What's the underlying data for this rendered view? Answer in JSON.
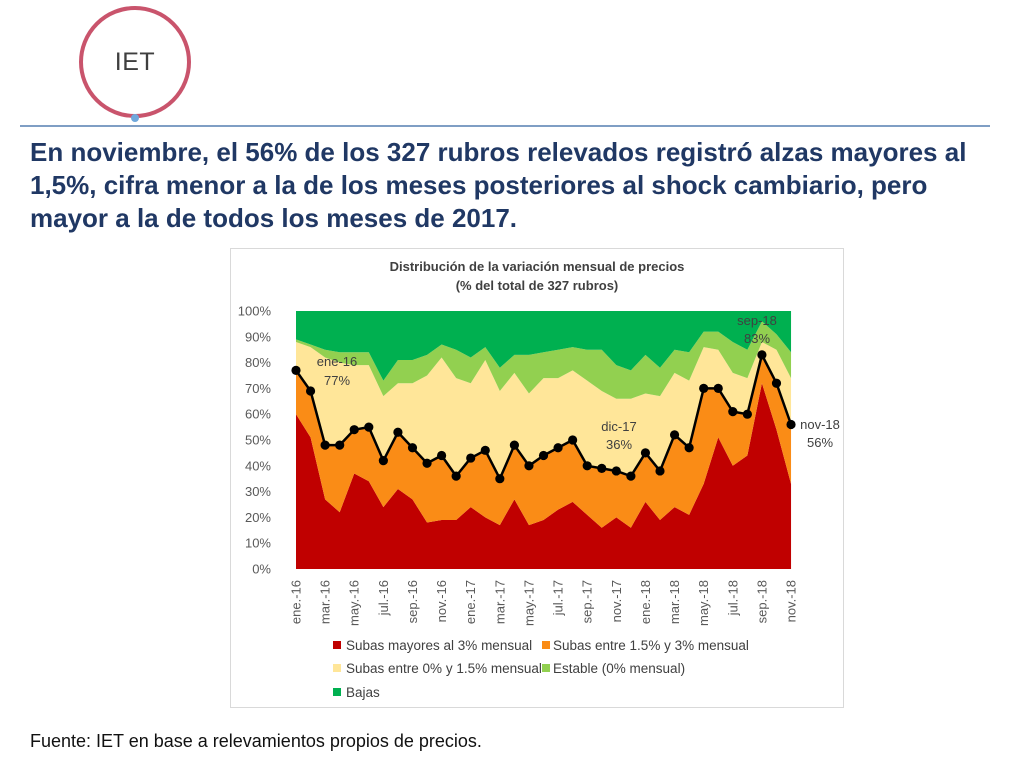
{
  "logo": {
    "text": "IET",
    "ring_color": "#C9546C",
    "dot_color": "#6FA8DC"
  },
  "rule_color": "#7F9EC4",
  "headline": {
    "color": "#203864",
    "lines": [
      "En noviembre, el 56% de los 327 rubros relevados registró alzas mayores al",
      "1,5%, cifra menor a la de los meses posteriores al shock cambiario, pero",
      "mayor a la de todos los meses de 2017."
    ]
  },
  "chart_data": {
    "type": "area",
    "stacked": true,
    "grid": false,
    "legend_position": "bottom",
    "title": "Distribución de la variación mensual de precios",
    "subtitle": "(% del total de 327 rubros)",
    "ylim": [
      0,
      100
    ],
    "y_ticks": [
      "0%",
      "10%",
      "20%",
      "30%",
      "40%",
      "50%",
      "60%",
      "70%",
      "80%",
      "90%",
      "100%"
    ],
    "categories": [
      "ene.-16",
      "",
      "mar.-16",
      "",
      "may.-16",
      "",
      "jul.-16",
      "",
      "sep.-16",
      "",
      "nov.-16",
      "",
      "ene.-17",
      "",
      "mar.-17",
      "",
      "may.-17",
      "",
      "jul.-17",
      "",
      "sep.-17",
      "",
      "nov.-17",
      "",
      "ene.-18",
      "",
      "mar.-18",
      "",
      "may.-18",
      "",
      "jul.-18",
      "",
      "sep.-18",
      "",
      "nov.-18"
    ],
    "series": [
      {
        "name": "Subas mayores al 3% mensual",
        "color": "#C00000",
        "values": [
          60,
          51,
          27,
          22,
          37,
          34,
          24,
          31,
          27,
          18,
          19,
          19,
          24,
          20,
          17,
          27,
          17,
          19,
          23,
          26,
          21,
          16,
          20,
          16,
          26,
          19,
          24,
          21,
          33,
          51,
          40,
          44,
          72,
          54,
          33
        ]
      },
      {
        "name": "Subas entre 1.5% y 3% mensual",
        "color": "#FA8C16",
        "values": [
          17,
          18,
          21,
          26,
          17,
          21,
          18,
          22,
          20,
          23,
          25,
          17,
          19,
          26,
          18,
          21,
          23,
          25,
          24,
          24,
          19,
          23,
          18,
          20,
          19,
          19,
          28,
          26,
          37,
          19,
          21,
          16,
          11,
          18,
          23
        ]
      },
      {
        "name": "Subas entre 0% y 1.5% mensual",
        "color": "#FFE699",
        "values": [
          11,
          17,
          34,
          32,
          25,
          24,
          25,
          19,
          25,
          34,
          38,
          38,
          29,
          35,
          34,
          28,
          28,
          30,
          27,
          27,
          33,
          30,
          28,
          30,
          23,
          29,
          24,
          26,
          16,
          15,
          15,
          14,
          5,
          13,
          18
        ]
      },
      {
        "name": "Estable (0% mensual)",
        "color": "#92D050",
        "values": [
          1,
          1,
          3,
          4,
          5,
          5,
          6,
          9,
          9,
          8,
          5,
          11,
          10,
          5,
          9,
          7,
          15,
          10,
          11,
          9,
          12,
          16,
          13,
          11,
          15,
          11,
          9,
          11,
          6,
          7,
          12,
          11,
          8,
          6,
          10
        ]
      },
      {
        "name": "Bajas",
        "color": "#00B050",
        "values": [
          11,
          13,
          15,
          16,
          16,
          16,
          27,
          19,
          19,
          17,
          13,
          15,
          18,
          14,
          22,
          17,
          17,
          16,
          15,
          14,
          15,
          15,
          21,
          23,
          17,
          22,
          15,
          16,
          8,
          8,
          12,
          15,
          4,
          9,
          16
        ]
      }
    ],
    "line": {
      "color": "#000000",
      "values": [
        77,
        69,
        48,
        48,
        54,
        55,
        42,
        53,
        47,
        41,
        44,
        36,
        43,
        46,
        35,
        48,
        40,
        44,
        47,
        50,
        40,
        39,
        38,
        36,
        45,
        38,
        52,
        47,
        70,
        70,
        61,
        60,
        83,
        72,
        56
      ]
    },
    "annotations": [
      {
        "label": "ene-16",
        "value": "77%"
      },
      {
        "label": "dic-17",
        "value": "36%"
      },
      {
        "label": "sep-18",
        "value": "83%"
      },
      {
        "label": "nov-18",
        "value": "56%"
      }
    ]
  },
  "source": "Fuente: IET en base a relevamientos propios de precios."
}
